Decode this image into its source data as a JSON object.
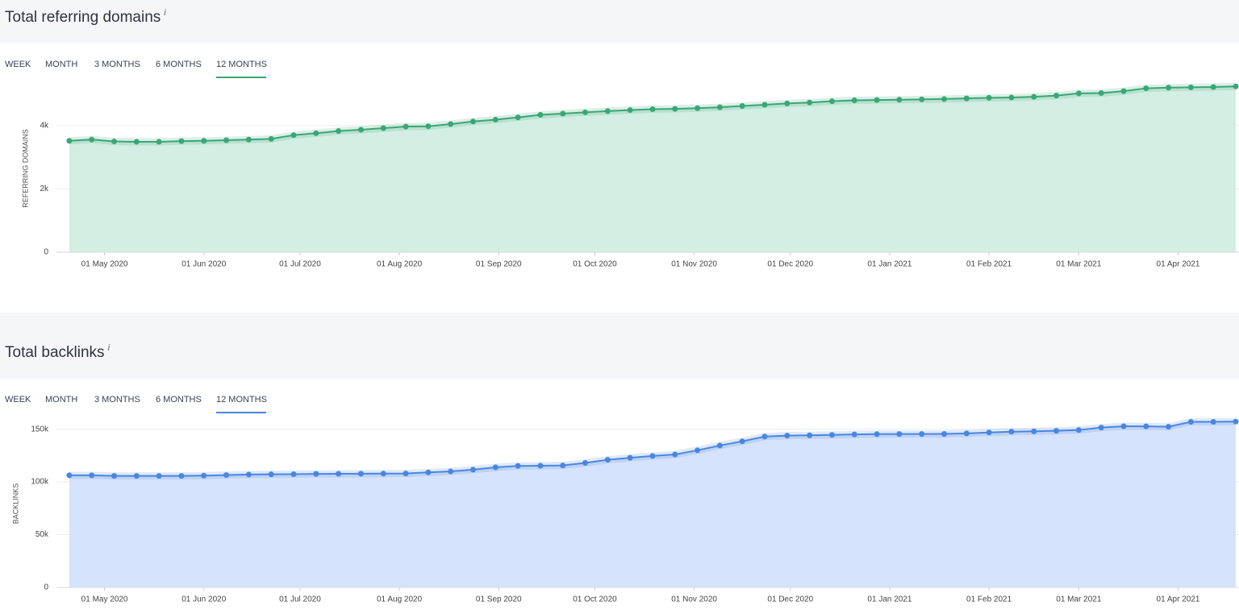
{
  "chart_data": [
    {
      "type": "area",
      "title": "Total referring domains",
      "info_icon": "i",
      "tabs": [
        "WEEK",
        "MONTH",
        "3 MONTHS",
        "6 MONTHS",
        "12 MONTHS"
      ],
      "selected_tab": 4,
      "y_label": "REFERRING DOMAINS",
      "x": [
        "2020-04-20",
        "2020-04-27",
        "2020-05-04",
        "2020-05-11",
        "2020-05-18",
        "2020-05-25",
        "2020-06-01",
        "2020-06-08",
        "2020-06-15",
        "2020-06-22",
        "2020-06-29",
        "2020-07-06",
        "2020-07-13",
        "2020-07-20",
        "2020-07-27",
        "2020-08-03",
        "2020-08-10",
        "2020-08-17",
        "2020-08-24",
        "2020-08-31",
        "2020-09-07",
        "2020-09-14",
        "2020-09-21",
        "2020-09-28",
        "2020-10-05",
        "2020-10-12",
        "2020-10-19",
        "2020-10-26",
        "2020-11-02",
        "2020-11-09",
        "2020-11-16",
        "2020-11-23",
        "2020-11-30",
        "2020-12-07",
        "2020-12-14",
        "2020-12-21",
        "2020-12-28",
        "2021-01-04",
        "2021-01-11",
        "2021-01-18",
        "2021-01-25",
        "2021-02-01",
        "2021-02-08",
        "2021-02-15",
        "2021-02-22",
        "2021-03-01",
        "2021-03-08",
        "2021-03-15",
        "2021-03-22",
        "2021-03-29",
        "2021-04-05",
        "2021-04-12",
        "2021-04-19"
      ],
      "series": [
        {
          "name": "Referring domains",
          "color": "#3aa676",
          "fill_color": "#d3eee2",
          "values": [
            3520,
            3560,
            3500,
            3490,
            3490,
            3510,
            3520,
            3540,
            3560,
            3580,
            3700,
            3760,
            3830,
            3870,
            3920,
            3970,
            3980,
            4050,
            4130,
            4190,
            4260,
            4340,
            4380,
            4420,
            4460,
            4490,
            4520,
            4530,
            4550,
            4580,
            4620,
            4660,
            4700,
            4730,
            4770,
            4800,
            4810,
            4820,
            4830,
            4840,
            4860,
            4880,
            4890,
            4910,
            4950,
            5020,
            5030,
            5090,
            5180,
            5200,
            5210,
            5220,
            5240
          ]
        }
      ],
      "xlim": [
        "2020-04-16",
        "2021-04-20"
      ],
      "xticks": [
        {
          "value": "2020-05-01",
          "label": "01 May 2020"
        },
        {
          "value": "2020-06-01",
          "label": "01 Jun 2020"
        },
        {
          "value": "2020-07-01",
          "label": "01 Jul 2020"
        },
        {
          "value": "2020-08-01",
          "label": "01 Aug 2020"
        },
        {
          "value": "2020-09-01",
          "label": "01 Sep 2020"
        },
        {
          "value": "2020-10-01",
          "label": "01 Oct 2020"
        },
        {
          "value": "2020-11-01",
          "label": "01 Nov 2020"
        },
        {
          "value": "2020-12-01",
          "label": "01 Dec 2020"
        },
        {
          "value": "2021-01-01",
          "label": "01 Jan 2021"
        },
        {
          "value": "2021-02-01",
          "label": "01 Feb 2021"
        },
        {
          "value": "2021-03-01",
          "label": "01 Mar 2021"
        },
        {
          "value": "2021-04-01",
          "label": "01 Apr 2021"
        }
      ],
      "ylim": [
        0,
        5500
      ],
      "yticks": [
        0,
        {
          "value": 2000,
          "label": "2k"
        },
        {
          "value": 4000,
          "label": "4k"
        }
      ],
      "grid": true
    },
    {
      "type": "area",
      "title": "Total backlinks",
      "info_icon": "i",
      "tabs": [
        "WEEK",
        "MONTH",
        "3 MONTHS",
        "6 MONTHS",
        "12 MONTHS"
      ],
      "selected_tab": 4,
      "y_label": "BACKLINKS",
      "x": [
        "2020-04-20",
        "2020-04-27",
        "2020-05-04",
        "2020-05-11",
        "2020-05-18",
        "2020-05-25",
        "2020-06-01",
        "2020-06-08",
        "2020-06-15",
        "2020-06-22",
        "2020-06-29",
        "2020-07-06",
        "2020-07-13",
        "2020-07-20",
        "2020-07-27",
        "2020-08-03",
        "2020-08-10",
        "2020-08-17",
        "2020-08-24",
        "2020-08-31",
        "2020-09-07",
        "2020-09-14",
        "2020-09-21",
        "2020-09-28",
        "2020-10-05",
        "2020-10-12",
        "2020-10-19",
        "2020-10-26",
        "2020-11-02",
        "2020-11-09",
        "2020-11-16",
        "2020-11-23",
        "2020-11-30",
        "2020-12-07",
        "2020-12-14",
        "2020-12-21",
        "2020-12-28",
        "2021-01-04",
        "2021-01-11",
        "2021-01-18",
        "2021-01-25",
        "2021-02-01",
        "2021-02-08",
        "2021-02-15",
        "2021-02-22",
        "2021-03-01",
        "2021-03-08",
        "2021-03-15",
        "2021-03-22",
        "2021-03-29",
        "2021-04-05",
        "2021-04-12",
        "2021-04-19"
      ],
      "series": [
        {
          "name": "Backlinks",
          "color": "#4a86e0",
          "fill_color": "#d6e3fc",
          "values": [
            106300,
            106300,
            105700,
            105700,
            105700,
            105700,
            106000,
            106500,
            107000,
            107200,
            107300,
            107600,
            107700,
            107800,
            107900,
            108000,
            109000,
            110000,
            111600,
            113800,
            115200,
            115300,
            115600,
            118000,
            121000,
            122900,
            124600,
            126000,
            130000,
            134500,
            138500,
            143000,
            143900,
            144200,
            144600,
            145000,
            145300,
            145400,
            145400,
            145500,
            146000,
            146900,
            147600,
            148000,
            148500,
            149200,
            151500,
            152800,
            152700,
            152300,
            157000,
            157000,
            157200
          ]
        }
      ],
      "xlim": [
        "2020-04-16",
        "2021-04-20"
      ],
      "xticks": [
        {
          "value": "2020-05-01",
          "label": "01 May 2020"
        },
        {
          "value": "2020-06-01",
          "label": "01 Jun 2020"
        },
        {
          "value": "2020-07-01",
          "label": "01 Jul 2020"
        },
        {
          "value": "2020-08-01",
          "label": "01 Aug 2020"
        },
        {
          "value": "2020-09-01",
          "label": "01 Sep 2020"
        },
        {
          "value": "2020-10-01",
          "label": "01 Oct 2020"
        },
        {
          "value": "2020-11-01",
          "label": "01 Nov 2020"
        },
        {
          "value": "2020-12-01",
          "label": "01 Dec 2020"
        },
        {
          "value": "2021-01-01",
          "label": "01 Jan 2021"
        },
        {
          "value": "2021-02-01",
          "label": "01 Feb 2021"
        },
        {
          "value": "2021-03-01",
          "label": "01 Mar 2021"
        },
        {
          "value": "2021-04-01",
          "label": "01 Apr 2021"
        }
      ],
      "ylim": [
        0,
        165000
      ],
      "yticks": [
        0,
        {
          "value": 50000,
          "label": "50k"
        },
        {
          "value": 100000,
          "label": "100k"
        },
        {
          "value": 150000,
          "label": "150k"
        }
      ],
      "grid": true
    }
  ]
}
